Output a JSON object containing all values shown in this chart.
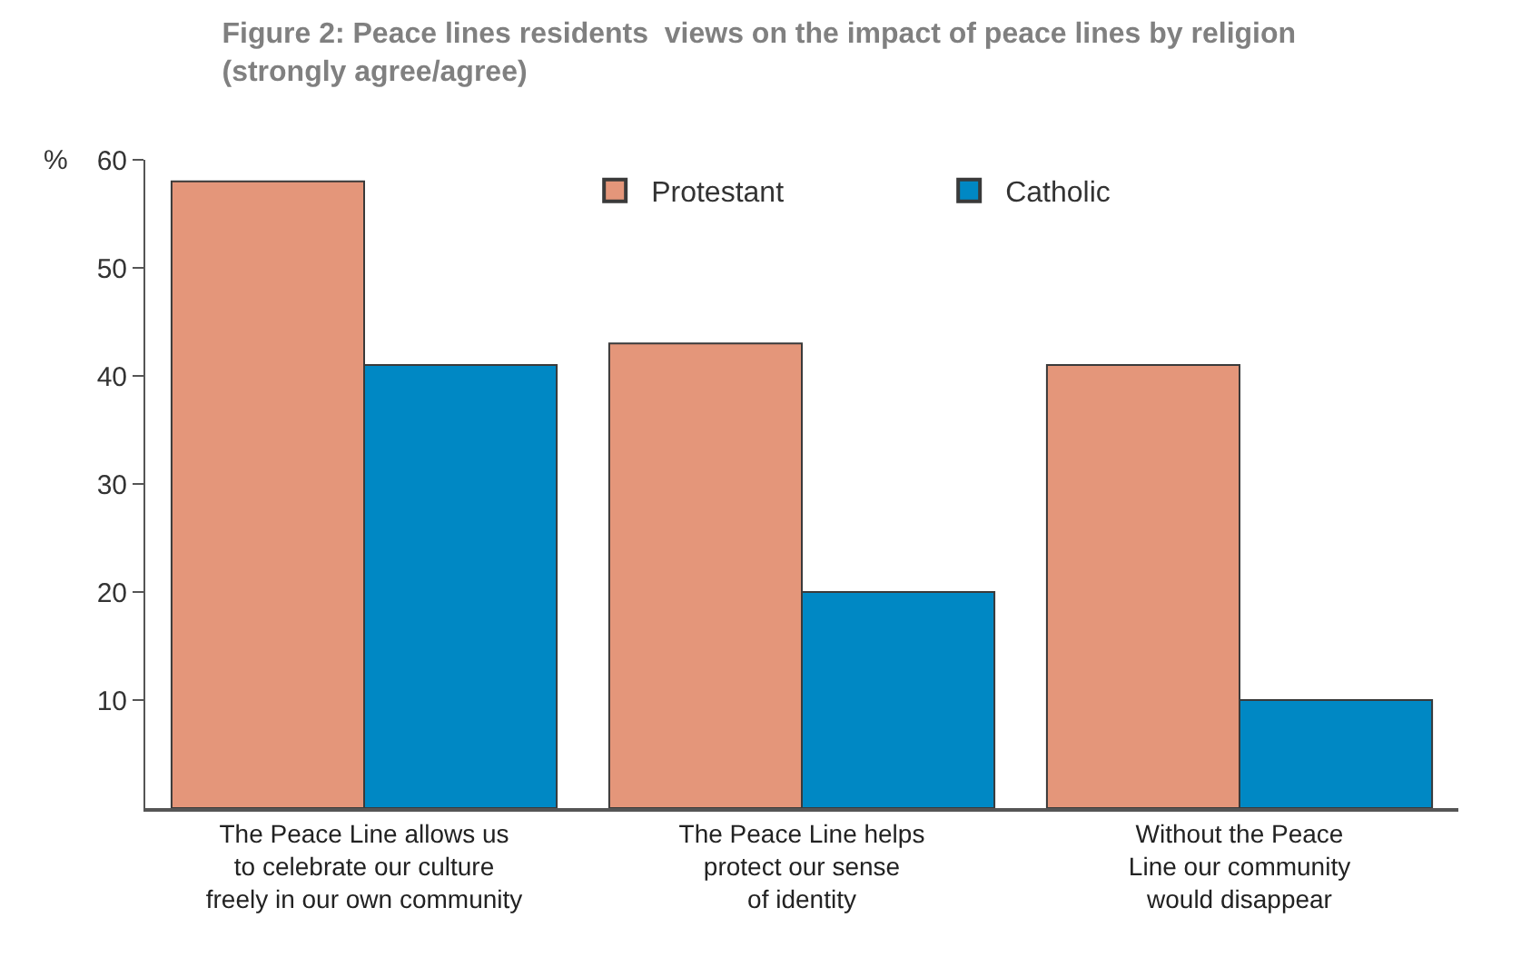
{
  "chart_data": {
    "type": "bar",
    "title": "Figure 2: Peace lines residents  views on the impact of peace lines by religion\n(strongly agree/agree)",
    "ylabel": "%",
    "categories": [
      "The Peace Line allows us\nto celebrate our culture\nfreely in our own community",
      "The Peace Line helps\nprotect our sense\nof identity",
      "Without the Peace\nLine our community\nwould disappear"
    ],
    "series": [
      {
        "name": "Protestant",
        "color": "#e4967a",
        "values": [
          58,
          43,
          41
        ]
      },
      {
        "name": "Catholic",
        "color": "#0088c4",
        "values": [
          41,
          20,
          10
        ]
      }
    ],
    "ylim": [
      0,
      60
    ],
    "yticks": [
      10,
      20,
      30,
      40,
      50,
      60
    ],
    "legend": "top"
  }
}
